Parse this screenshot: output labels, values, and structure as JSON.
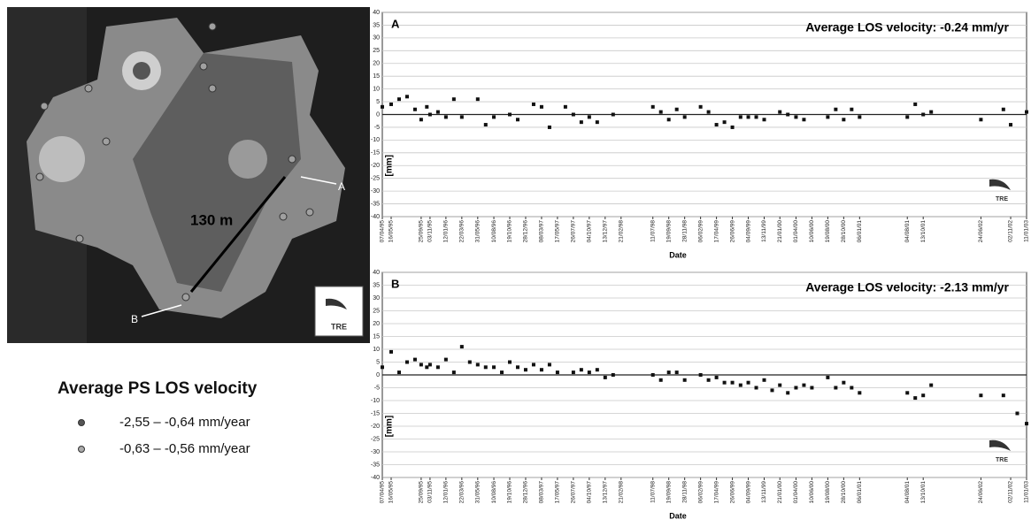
{
  "chart_data": [
    {
      "type": "scatter",
      "annotation": "A",
      "title": "Average LOS velocity: -0.24 mm/yr",
      "ylabel": "[mm]",
      "xlabel": "Date",
      "logo": "TRE",
      "color": "#111111",
      "grid": true,
      "xlim": [
        "1995-04-07",
        "2003-01-11"
      ],
      "ylim": [
        -40,
        40
      ],
      "yticks": [
        40,
        35,
        30,
        25,
        20,
        15,
        10,
        5,
        0,
        -5,
        -10,
        -15,
        -20,
        -25,
        -30,
        -35,
        -40
      ],
      "xticks": [
        {
          "value": "1995-04-07",
          "label": "07/04/95"
        },
        {
          "value": "1995-05-16",
          "label": "16/05/95"
        },
        {
          "value": "1995-09-25",
          "label": "25/09/95"
        },
        {
          "value": "1995-11-03",
          "label": "03/11/95"
        },
        {
          "value": "1996-01-12",
          "label": "12/01/96"
        },
        {
          "value": "1996-03-22",
          "label": "22/03/96"
        },
        {
          "value": "1996-05-31",
          "label": "31/05/96"
        },
        {
          "value": "1996-08-10",
          "label": "10/08/96"
        },
        {
          "value": "1996-10-19",
          "label": "19/10/96"
        },
        {
          "value": "1996-12-28",
          "label": "28/12/96"
        },
        {
          "value": "1997-03-08",
          "label": "08/03/97"
        },
        {
          "value": "1997-05-17",
          "label": "17/05/97"
        },
        {
          "value": "1997-07-26",
          "label": "26/07/97"
        },
        {
          "value": "1997-10-04",
          "label": "04/10/97"
        },
        {
          "value": "1997-12-13",
          "label": "13/12/97"
        },
        {
          "value": "1998-02-21",
          "label": "21/02/98"
        },
        {
          "value": "1998-07-11",
          "label": "11/07/98"
        },
        {
          "value": "1998-09-19",
          "label": "19/09/98"
        },
        {
          "value": "1998-11-28",
          "label": "28/11/98"
        },
        {
          "value": "1999-02-06",
          "label": "06/02/99"
        },
        {
          "value": "1999-04-17",
          "label": "17/04/99"
        },
        {
          "value": "1999-06-26",
          "label": "26/06/99"
        },
        {
          "value": "1999-09-04",
          "label": "04/09/99"
        },
        {
          "value": "1999-11-13",
          "label": "13/11/99"
        },
        {
          "value": "2000-01-21",
          "label": "21/01/00"
        },
        {
          "value": "2000-04-01",
          "label": "01/04/00"
        },
        {
          "value": "2000-06-10",
          "label": "10/06/00"
        },
        {
          "value": "2000-08-19",
          "label": "19/08/00"
        },
        {
          "value": "2000-10-28",
          "label": "28/10/00"
        },
        {
          "value": "2001-01-06",
          "label": "06/01/01"
        },
        {
          "value": "2001-08-04",
          "label": "04/08/01"
        },
        {
          "value": "2001-10-13",
          "label": "13/10/01"
        },
        {
          "value": "2002-06-24",
          "label": "24/06/02"
        },
        {
          "value": "2002-11-02",
          "label": "02/11/02"
        },
        {
          "value": "2003-01-11",
          "label": "11/01/03"
        }
      ],
      "x": [
        "1995-04-07",
        "1995-05-16",
        "1995-06-20",
        "1995-07-25",
        "1995-08-29",
        "1995-09-25",
        "1995-10-20",
        "1995-11-03",
        "1995-12-08",
        "1996-01-12",
        "1996-02-16",
        "1996-03-22",
        "1996-05-31",
        "1996-07-05",
        "1996-08-10",
        "1996-10-19",
        "1996-11-23",
        "1997-02-01",
        "1997-03-08",
        "1997-04-12",
        "1997-06-21",
        "1997-07-26",
        "1997-08-30",
        "1997-10-04",
        "1997-11-08",
        "1998-01-17",
        "1998-07-11",
        "1998-08-15",
        "1998-09-19",
        "1998-10-24",
        "1998-11-28",
        "1999-02-06",
        "1999-03-13",
        "1999-04-17",
        "1999-05-22",
        "1999-06-26",
        "1999-08-01",
        "1999-09-04",
        "1999-10-09",
        "1999-11-13",
        "2000-01-21",
        "2000-02-25",
        "2000-04-01",
        "2000-05-06",
        "2000-08-19",
        "2000-09-23",
        "2000-10-28",
        "2000-12-02",
        "2001-01-06",
        "2001-08-04",
        "2001-09-08",
        "2001-10-13",
        "2001-11-17",
        "2002-06-24",
        "2002-10-01",
        "2002-11-02",
        "2003-01-11"
      ],
      "values": [
        3,
        4,
        6,
        7,
        2,
        -2,
        3,
        0,
        1,
        -1,
        6,
        -1,
        6,
        -4,
        -1,
        0,
        -2,
        4,
        3,
        -5,
        3,
        0,
        -3,
        -1,
        -3,
        0,
        3,
        1,
        -2,
        2,
        -1,
        3,
        1,
        -4,
        -3,
        -5,
        -1,
        -1,
        -1,
        -2,
        1,
        0,
        -1,
        -2,
        -1,
        2,
        -2,
        2,
        -1,
        -1,
        4,
        0,
        1,
        -2,
        2,
        -4,
        1
      ]
    },
    {
      "type": "scatter",
      "annotation": "B",
      "title": "Average LOS velocity: -2.13 mm/yr",
      "ylabel": "[mm]",
      "xlabel": "Date",
      "logo": "TRE",
      "color": "#111111",
      "grid": true,
      "xlim": [
        "1995-04-07",
        "2003-01-11"
      ],
      "ylim": [
        -40,
        40
      ],
      "yticks": [
        40,
        35,
        30,
        25,
        20,
        15,
        10,
        5,
        0,
        -5,
        -10,
        -15,
        -20,
        -25,
        -30,
        -35,
        -40
      ],
      "xticks": [
        {
          "value": "1995-04-07",
          "label": "07/04/95"
        },
        {
          "value": "1995-05-16",
          "label": "16/05/95"
        },
        {
          "value": "1995-09-25",
          "label": "25/09/95"
        },
        {
          "value": "1995-11-03",
          "label": "03/11/95"
        },
        {
          "value": "1996-01-12",
          "label": "12/01/96"
        },
        {
          "value": "1996-03-22",
          "label": "22/03/96"
        },
        {
          "value": "1996-05-31",
          "label": "31/05/96"
        },
        {
          "value": "1996-08-10",
          "label": "10/08/96"
        },
        {
          "value": "1996-10-19",
          "label": "19/10/96"
        },
        {
          "value": "1996-12-28",
          "label": "28/12/96"
        },
        {
          "value": "1997-03-08",
          "label": "08/03/97"
        },
        {
          "value": "1997-05-17",
          "label": "17/05/97"
        },
        {
          "value": "1997-07-26",
          "label": "26/07/97"
        },
        {
          "value": "1997-10-04",
          "label": "04/10/97"
        },
        {
          "value": "1997-12-13",
          "label": "13/12/97"
        },
        {
          "value": "1998-02-21",
          "label": "21/02/98"
        },
        {
          "value": "1998-07-11",
          "label": "11/07/98"
        },
        {
          "value": "1998-09-19",
          "label": "19/09/98"
        },
        {
          "value": "1998-11-28",
          "label": "28/11/98"
        },
        {
          "value": "1999-02-06",
          "label": "06/02/99"
        },
        {
          "value": "1999-04-17",
          "label": "17/04/99"
        },
        {
          "value": "1999-06-26",
          "label": "26/06/99"
        },
        {
          "value": "1999-09-04",
          "label": "04/09/99"
        },
        {
          "value": "1999-11-13",
          "label": "13/11/99"
        },
        {
          "value": "2000-01-21",
          "label": "21/01/00"
        },
        {
          "value": "2000-04-01",
          "label": "01/04/00"
        },
        {
          "value": "2000-06-10",
          "label": "10/06/00"
        },
        {
          "value": "2000-08-19",
          "label": "19/08/00"
        },
        {
          "value": "2000-10-28",
          "label": "28/10/00"
        },
        {
          "value": "2001-01-06",
          "label": "06/01/01"
        },
        {
          "value": "2001-08-04",
          "label": "04/08/01"
        },
        {
          "value": "2001-10-13",
          "label": "13/10/01"
        },
        {
          "value": "2002-06-24",
          "label": "24/06/02"
        },
        {
          "value": "2002-11-02",
          "label": "02/11/02"
        },
        {
          "value": "2003-01-11",
          "label": "11/01/03"
        }
      ],
      "x": [
        "1995-04-07",
        "1995-05-16",
        "1995-06-20",
        "1995-07-25",
        "1995-08-29",
        "1995-09-25",
        "1995-10-20",
        "1995-11-03",
        "1995-12-08",
        "1996-01-12",
        "1996-02-16",
        "1996-03-22",
        "1996-04-26",
        "1996-05-31",
        "1996-07-05",
        "1996-08-10",
        "1996-09-14",
        "1996-10-19",
        "1996-11-23",
        "1996-12-28",
        "1997-02-01",
        "1997-03-08",
        "1997-04-12",
        "1997-05-17",
        "1997-07-26",
        "1997-08-30",
        "1997-10-04",
        "1997-11-08",
        "1997-12-13",
        "1998-01-17",
        "1998-07-11",
        "1998-08-15",
        "1998-09-19",
        "1998-10-24",
        "1998-11-28",
        "1999-02-06",
        "1999-03-13",
        "1999-04-17",
        "1999-05-22",
        "1999-06-26",
        "1999-08-01",
        "1999-09-04",
        "1999-10-09",
        "1999-11-13",
        "1999-12-18",
        "2000-01-21",
        "2000-02-25",
        "2000-04-01",
        "2000-05-06",
        "2000-06-10",
        "2000-08-19",
        "2000-09-23",
        "2000-10-28",
        "2000-12-02",
        "2001-01-06",
        "2001-08-04",
        "2001-09-08",
        "2001-10-13",
        "2001-11-17",
        "2002-06-24",
        "2002-10-01",
        "2002-12-01",
        "2003-01-11"
      ],
      "values": [
        3,
        9,
        1,
        5,
        6,
        4,
        3,
        4,
        3,
        6,
        1,
        11,
        5,
        4,
        3,
        3,
        1,
        5,
        3,
        2,
        4,
        2,
        4,
        1,
        1,
        2,
        1,
        2,
        -1,
        0,
        0,
        -2,
        1,
        1,
        -2,
        0,
        -2,
        -1,
        -3,
        -3,
        -4,
        -3,
        -5,
        -2,
        -6,
        -4,
        -7,
        -5,
        -4,
        -5,
        -1,
        -5,
        -3,
        -5,
        -7,
        -7,
        -9,
        -8,
        -4,
        -8,
        -8,
        -15,
        -19
      ]
    }
  ],
  "map": {
    "distance": "130 m",
    "point_a": "A",
    "point_b": "B",
    "logo": "TRE"
  },
  "legend": {
    "title": "Average PS LOS velocity",
    "items": [
      "-2,55 – -0,64 mm/year",
      "-0,63 – -0,56 mm/year"
    ]
  }
}
